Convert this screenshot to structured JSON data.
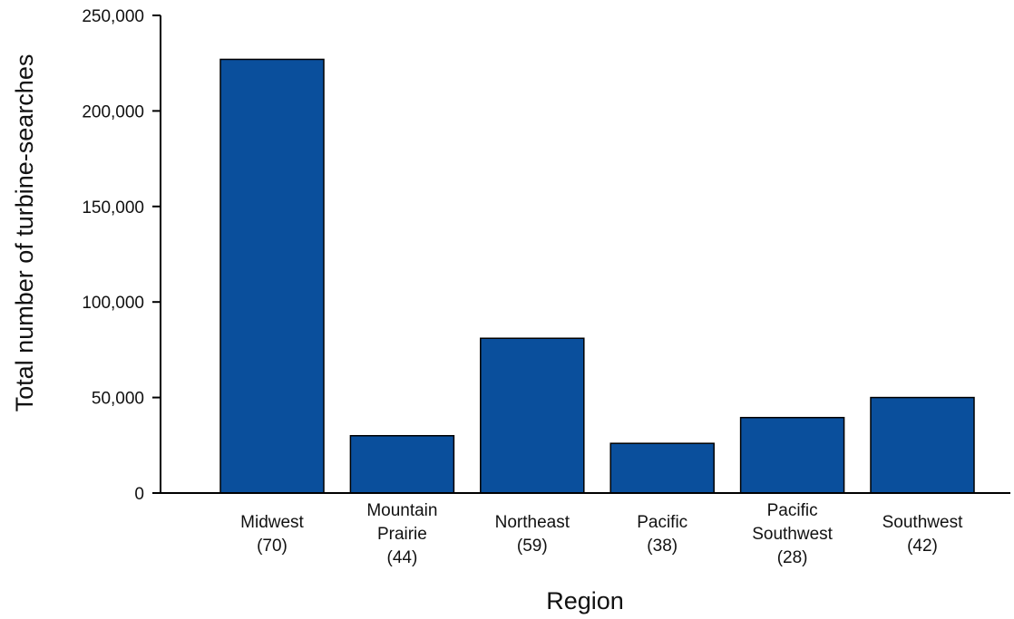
{
  "chart_data": {
    "type": "bar",
    "title": "",
    "xlabel": "Region",
    "ylabel": "Total number of turbine-searches",
    "categories": [
      [
        "Midwest",
        "(70)"
      ],
      [
        "Mountain",
        "Prairie",
        "(44)"
      ],
      [
        "Northeast",
        "(59)"
      ],
      [
        "Pacific",
        "(38)"
      ],
      [
        "Pacific",
        "Southwest",
        "(28)"
      ],
      [
        "Southwest",
        "(42)"
      ]
    ],
    "values": [
      227000,
      30000,
      81000,
      26000,
      39500,
      50000
    ],
    "ylim": [
      0,
      250000
    ],
    "yticks": [
      0,
      50000,
      100000,
      150000,
      200000,
      250000
    ],
    "ytick_labels": [
      "0",
      "50,000",
      "100,000",
      "150,000",
      "200,000",
      "250,000"
    ],
    "grid": false,
    "bar_color": "#0a4f9c"
  }
}
